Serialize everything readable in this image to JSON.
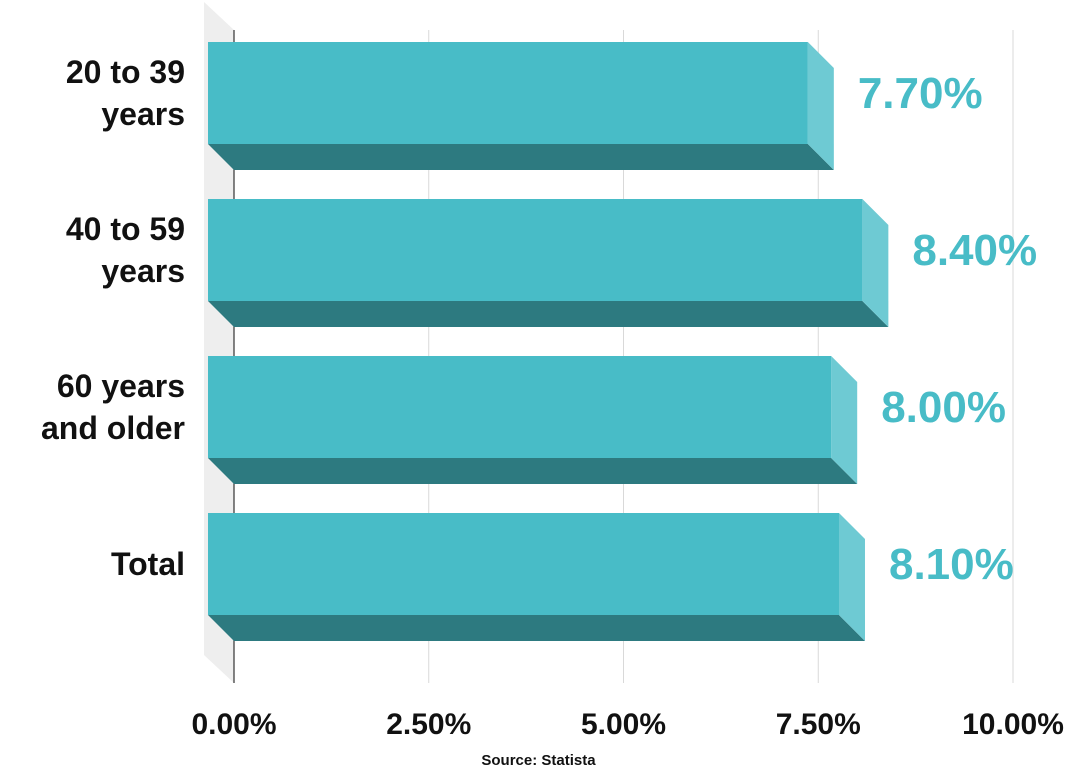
{
  "chart_data": {
    "type": "bar",
    "orientation": "horizontal",
    "style": "3d",
    "categories": [
      [
        "20 to 39",
        "years"
      ],
      [
        "40 to 59",
        "years"
      ],
      [
        "60 years",
        "and older"
      ],
      [
        "Total"
      ]
    ],
    "values": [
      7.7,
      8.4,
      8.0,
      8.1
    ],
    "value_labels": [
      "7.70%",
      "8.40%",
      "8.00%",
      "8.10%"
    ],
    "xlim": [
      0,
      10
    ],
    "xticks": [
      0,
      2.5,
      5,
      7.5,
      10
    ],
    "xtick_labels": [
      "0.00%",
      "2.50%",
      "5.00%",
      "7.50%",
      "10.00%"
    ],
    "grid": true,
    "title": "",
    "xlabel": "",
    "ylabel": ""
  },
  "source": "Source: Statista",
  "colors": {
    "bar_front": "#48bcc7",
    "bar_side": "#6ecad3",
    "bar_bottom": "#2d7a80",
    "value_text": "#48bcc7",
    "grid": "#d9d9d9",
    "wall": "#eeeeee"
  }
}
